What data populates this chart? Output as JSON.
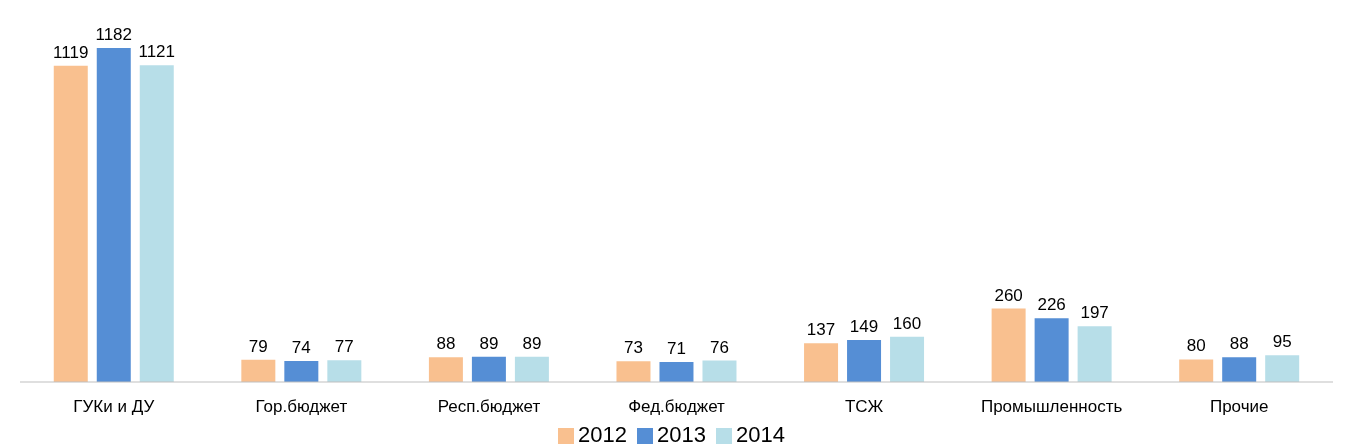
{
  "chart_data": {
    "type": "bar",
    "categories": [
      "ГУКи и ДУ",
      "Гор.бюджет",
      "Респ.бюджет",
      "Фед.бюджет",
      "ТСЖ",
      "Промышленность",
      "Прочие"
    ],
    "series": [
      {
        "name": "2012",
        "color": "#f9c08f",
        "values": [
          1119,
          79,
          88,
          73,
          137,
          260,
          80
        ]
      },
      {
        "name": "2013",
        "color": "#558ed5",
        "values": [
          1182,
          74,
          89,
          71,
          149,
          226,
          88
        ]
      },
      {
        "name": "2014",
        "color": "#b7dee8",
        "values": [
          1121,
          77,
          89,
          76,
          160,
          197,
          95
        ]
      }
    ],
    "data_labels": true,
    "legend": "bottom",
    "grid": false
  }
}
